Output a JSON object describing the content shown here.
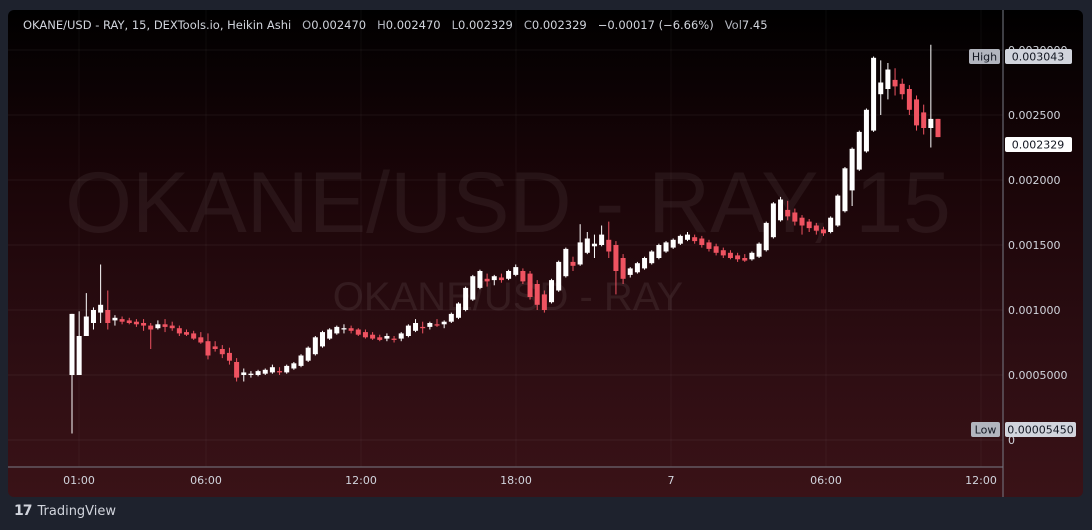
{
  "header": {
    "symbol": "OKANE/USD - RAY, 15, DEXTools.io, Heikin Ashi",
    "o_key": "O",
    "o_val": "0.002470",
    "h_key": "H",
    "h_val": "0.002470",
    "l_key": "L",
    "l_val": "0.002329",
    "c_key": "C",
    "c_val": "0.002329",
    "change": "−0.00017 (−6.66%)",
    "vol_key": "Vol",
    "vol_val": "7.45"
  },
  "watermark": {
    "main": "OKANE/USD - RAY, 15",
    "sub": "OKANE/USD - RAY"
  },
  "footer": {
    "brand": "TradingView"
  },
  "price_labels": {
    "high_tag": "High",
    "high_val": "0.003043",
    "last_val": "0.002329",
    "low_tag": "Low",
    "low_val": "0.00005450"
  },
  "colors": {
    "up": "#ffffff",
    "down": "#ef5361",
    "bg_top": "#000000",
    "bg_bottom": "#3a1217"
  },
  "chart_data": {
    "type": "candlestick",
    "style": "Heikin Ashi",
    "y_ticks": [
      "0.0030000",
      "0.002500",
      "0.002000",
      "0.001500",
      "0.001000",
      "0.0005000",
      "0"
    ],
    "x_ticks": [
      "01:00",
      "06:00",
      "12:00",
      "18:00",
      "7",
      "06:00",
      "12:00"
    ],
    "ylim": [
      0,
      0.00325
    ],
    "candles": [
      {
        "o": 0.0005,
        "h": 0.00097,
        "l": 5e-05,
        "c": 0.00097
      },
      {
        "o": 0.0005,
        "h": 0.00099,
        "l": 0.0005,
        "c": 0.0008
      },
      {
        "o": 0.0008,
        "h": 0.00113,
        "l": 0.0008,
        "c": 0.00095
      },
      {
        "o": 0.0009,
        "h": 0.00102,
        "l": 0.00085,
        "c": 0.001
      },
      {
        "o": 0.00098,
        "h": 0.00135,
        "l": 0.0009,
        "c": 0.00104
      },
      {
        "o": 0.001,
        "h": 0.00115,
        "l": 0.00085,
        "c": 0.0009
      },
      {
        "o": 0.00092,
        "h": 0.00096,
        "l": 0.00088,
        "c": 0.00094
      },
      {
        "o": 0.00093,
        "h": 0.00095,
        "l": 0.00089,
        "c": 0.00091
      },
      {
        "o": 0.00092,
        "h": 0.00094,
        "l": 0.00089,
        "c": 0.0009
      },
      {
        "o": 0.00091,
        "h": 0.00093,
        "l": 0.00087,
        "c": 0.00089
      },
      {
        "o": 0.0009,
        "h": 0.00093,
        "l": 0.00084,
        "c": 0.00088
      },
      {
        "o": 0.00088,
        "h": 0.0009,
        "l": 0.0007,
        "c": 0.00085
      },
      {
        "o": 0.00086,
        "h": 0.00092,
        "l": 0.00085,
        "c": 0.00089
      },
      {
        "o": 0.00089,
        "h": 0.00093,
        "l": 0.00083,
        "c": 0.00087
      },
      {
        "o": 0.00088,
        "h": 0.00091,
        "l": 0.00084,
        "c": 0.00086
      },
      {
        "o": 0.00086,
        "h": 0.00088,
        "l": 0.0008,
        "c": 0.00082
      },
      {
        "o": 0.00083,
        "h": 0.00085,
        "l": 0.0008,
        "c": 0.00081
      },
      {
        "o": 0.00082,
        "h": 0.00084,
        "l": 0.00077,
        "c": 0.00078
      },
      {
        "o": 0.00079,
        "h": 0.00083,
        "l": 0.00074,
        "c": 0.00075
      },
      {
        "o": 0.00076,
        "h": 0.00082,
        "l": 0.00062,
        "c": 0.00065
      },
      {
        "o": 0.00072,
        "h": 0.00076,
        "l": 0.00068,
        "c": 0.0007
      },
      {
        "o": 0.0007,
        "h": 0.00073,
        "l": 0.00063,
        "c": 0.00066
      },
      {
        "o": 0.00067,
        "h": 0.00071,
        "l": 0.00058,
        "c": 0.00061
      },
      {
        "o": 0.0006,
        "h": 0.00063,
        "l": 0.00045,
        "c": 0.00048
      },
      {
        "o": 0.0005,
        "h": 0.00055,
        "l": 0.00045,
        "c": 0.00052
      },
      {
        "o": 0.0005,
        "h": 0.00053,
        "l": 0.00048,
        "c": 0.00051
      },
      {
        "o": 0.0005,
        "h": 0.00054,
        "l": 0.00049,
        "c": 0.00053
      },
      {
        "o": 0.00051,
        "h": 0.00055,
        "l": 0.0005,
        "c": 0.00054
      },
      {
        "o": 0.00052,
        "h": 0.00058,
        "l": 0.00051,
        "c": 0.00056
      },
      {
        "o": 0.00053,
        "h": 0.00056,
        "l": 0.0005,
        "c": 0.00052
      },
      {
        "o": 0.00052,
        "h": 0.00058,
        "l": 0.00051,
        "c": 0.00057
      },
      {
        "o": 0.00055,
        "h": 0.0006,
        "l": 0.00054,
        "c": 0.00059
      },
      {
        "o": 0.00057,
        "h": 0.00066,
        "l": 0.00056,
        "c": 0.00065
      },
      {
        "o": 0.00061,
        "h": 0.00072,
        "l": 0.0006,
        "c": 0.00071
      },
      {
        "o": 0.00066,
        "h": 0.0008,
        "l": 0.00065,
        "c": 0.00079
      },
      {
        "o": 0.00072,
        "h": 0.00084,
        "l": 0.00071,
        "c": 0.00083
      },
      {
        "o": 0.00078,
        "h": 0.00086,
        "l": 0.00077,
        "c": 0.00085
      },
      {
        "o": 0.00082,
        "h": 0.00088,
        "l": 0.00081,
        "c": 0.00087
      },
      {
        "o": 0.00085,
        "h": 0.00089,
        "l": 0.00082,
        "c": 0.00086
      },
      {
        "o": 0.00086,
        "h": 0.00088,
        "l": 0.00082,
        "c": 0.00084
      },
      {
        "o": 0.00085,
        "h": 0.00086,
        "l": 0.0008,
        "c": 0.00081
      },
      {
        "o": 0.00083,
        "h": 0.00085,
        "l": 0.00078,
        "c": 0.00079
      },
      {
        "o": 0.00081,
        "h": 0.00083,
        "l": 0.00077,
        "c": 0.00078
      },
      {
        "o": 0.00079,
        "h": 0.00081,
        "l": 0.00076,
        "c": 0.00077
      },
      {
        "o": 0.00078,
        "h": 0.00082,
        "l": 0.00076,
        "c": 0.0008
      },
      {
        "o": 0.00078,
        "h": 0.0008,
        "l": 0.00075,
        "c": 0.00077
      },
      {
        "o": 0.00078,
        "h": 0.00083,
        "l": 0.00076,
        "c": 0.00082
      },
      {
        "o": 0.0008,
        "h": 0.00089,
        "l": 0.00079,
        "c": 0.00088
      },
      {
        "o": 0.00084,
        "h": 0.00093,
        "l": 0.00083,
        "c": 0.0009
      },
      {
        "o": 0.00087,
        "h": 0.00091,
        "l": 0.00082,
        "c": 0.00086
      },
      {
        "o": 0.00087,
        "h": 0.00091,
        "l": 0.00085,
        "c": 0.0009
      },
      {
        "o": 0.00089,
        "h": 0.00093,
        "l": 0.00087,
        "c": 0.00088
      },
      {
        "o": 0.00089,
        "h": 0.00092,
        "l": 0.00086,
        "c": 0.00091
      },
      {
        "o": 0.00091,
        "h": 0.00098,
        "l": 0.0009,
        "c": 0.00097
      },
      {
        "o": 0.00094,
        "h": 0.00106,
        "l": 0.00093,
        "c": 0.00105
      },
      {
        "o": 0.001,
        "h": 0.00118,
        "l": 0.00099,
        "c": 0.00117
      },
      {
        "o": 0.00108,
        "h": 0.00127,
        "l": 0.00107,
        "c": 0.00126
      },
      {
        "o": 0.00117,
        "h": 0.00131,
        "l": 0.00116,
        "c": 0.0013
      },
      {
        "o": 0.00124,
        "h": 0.00128,
        "l": 0.00118,
        "c": 0.00122
      },
      {
        "o": 0.00123,
        "h": 0.00127,
        "l": 0.00119,
        "c": 0.00126
      },
      {
        "o": 0.00125,
        "h": 0.00128,
        "l": 0.00121,
        "c": 0.00123
      },
      {
        "o": 0.00124,
        "h": 0.00131,
        "l": 0.00123,
        "c": 0.0013
      },
      {
        "o": 0.00127,
        "h": 0.00135,
        "l": 0.00126,
        "c": 0.00133
      },
      {
        "o": 0.0013,
        "h": 0.00132,
        "l": 0.0012,
        "c": 0.00122
      },
      {
        "o": 0.00128,
        "h": 0.0013,
        "l": 0.00108,
        "c": 0.0011
      },
      {
        "o": 0.0012,
        "h": 0.00123,
        "l": 0.001,
        "c": 0.00104
      },
      {
        "o": 0.00112,
        "h": 0.00115,
        "l": 0.00098,
        "c": 0.001
      },
      {
        "o": 0.00106,
        "h": 0.00124,
        "l": 0.00105,
        "c": 0.00123
      },
      {
        "o": 0.00115,
        "h": 0.00138,
        "l": 0.00114,
        "c": 0.00137
      },
      {
        "o": 0.00126,
        "h": 0.00148,
        "l": 0.00125,
        "c": 0.00147
      },
      {
        "o": 0.00137,
        "h": 0.00141,
        "l": 0.0013,
        "c": 0.00134
      },
      {
        "o": 0.00135,
        "h": 0.00166,
        "l": 0.00134,
        "c": 0.00152
      },
      {
        "o": 0.00144,
        "h": 0.0016,
        "l": 0.00143,
        "c": 0.00155
      },
      {
        "o": 0.00149,
        "h": 0.00158,
        "l": 0.0014,
        "c": 0.00151
      },
      {
        "o": 0.0015,
        "h": 0.00165,
        "l": 0.00149,
        "c": 0.00158
      },
      {
        "o": 0.00154,
        "h": 0.00168,
        "l": 0.0014,
        "c": 0.00145
      },
      {
        "o": 0.0015,
        "h": 0.00153,
        "l": 0.00112,
        "c": 0.0013
      },
      {
        "o": 0.0014,
        "h": 0.00143,
        "l": 0.0012,
        "c": 0.00124
      },
      {
        "o": 0.00127,
        "h": 0.00133,
        "l": 0.00125,
        "c": 0.00132
      },
      {
        "o": 0.00129,
        "h": 0.00137,
        "l": 0.00128,
        "c": 0.00136
      },
      {
        "o": 0.00132,
        "h": 0.00141,
        "l": 0.00131,
        "c": 0.0014
      },
      {
        "o": 0.00136,
        "h": 0.00146,
        "l": 0.00135,
        "c": 0.00145
      },
      {
        "o": 0.0014,
        "h": 0.00151,
        "l": 0.00139,
        "c": 0.0015
      },
      {
        "o": 0.00145,
        "h": 0.00153,
        "l": 0.00144,
        "c": 0.00152
      },
      {
        "o": 0.00148,
        "h": 0.00155,
        "l": 0.00147,
        "c": 0.00154
      },
      {
        "o": 0.00151,
        "h": 0.00158,
        "l": 0.0015,
        "c": 0.00157
      },
      {
        "o": 0.00154,
        "h": 0.0016,
        "l": 0.00153,
        "c": 0.00158
      },
      {
        "o": 0.00156,
        "h": 0.00158,
        "l": 0.00151,
        "c": 0.00153
      },
      {
        "o": 0.00155,
        "h": 0.00157,
        "l": 0.00148,
        "c": 0.0015
      },
      {
        "o": 0.00152,
        "h": 0.00154,
        "l": 0.00145,
        "c": 0.00147
      },
      {
        "o": 0.00149,
        "h": 0.00151,
        "l": 0.00142,
        "c": 0.00144
      },
      {
        "o": 0.00146,
        "h": 0.00148,
        "l": 0.0014,
        "c": 0.00142
      },
      {
        "o": 0.00144,
        "h": 0.00146,
        "l": 0.00139,
        "c": 0.0014
      },
      {
        "o": 0.00142,
        "h": 0.00144,
        "l": 0.00137,
        "c": 0.00139
      },
      {
        "o": 0.0014,
        "h": 0.00143,
        "l": 0.00137,
        "c": 0.00138
      },
      {
        "o": 0.00139,
        "h": 0.00145,
        "l": 0.00138,
        "c": 0.00144
      },
      {
        "o": 0.00141,
        "h": 0.00152,
        "l": 0.0014,
        "c": 0.00151
      },
      {
        "o": 0.00146,
        "h": 0.00168,
        "l": 0.00145,
        "c": 0.00167
      },
      {
        "o": 0.00156,
        "h": 0.00183,
        "l": 0.00155,
        "c": 0.00182
      },
      {
        "o": 0.00169,
        "h": 0.00187,
        "l": 0.00168,
        "c": 0.00185
      },
      {
        "o": 0.00177,
        "h": 0.00184,
        "l": 0.00169,
        "c": 0.00172
      },
      {
        "o": 0.00175,
        "h": 0.00178,
        "l": 0.00165,
        "c": 0.00168
      },
      {
        "o": 0.00171,
        "h": 0.00173,
        "l": 0.00158,
        "c": 0.00165
      },
      {
        "o": 0.00168,
        "h": 0.0017,
        "l": 0.0016,
        "c": 0.00163
      },
      {
        "o": 0.00165,
        "h": 0.00167,
        "l": 0.00158,
        "c": 0.00161
      },
      {
        "o": 0.00162,
        "h": 0.00164,
        "l": 0.00157,
        "c": 0.00159
      },
      {
        "o": 0.0016,
        "h": 0.00172,
        "l": 0.00159,
        "c": 0.00171
      },
      {
        "o": 0.00165,
        "h": 0.00189,
        "l": 0.00164,
        "c": 0.00188
      },
      {
        "o": 0.00176,
        "h": 0.0021,
        "l": 0.00175,
        "c": 0.00209
      },
      {
        "o": 0.00192,
        "h": 0.00225,
        "l": 0.0018,
        "c": 0.00224
      },
      {
        "o": 0.00208,
        "h": 0.00238,
        "l": 0.00207,
        "c": 0.00237
      },
      {
        "o": 0.00222,
        "h": 0.00255,
        "l": 0.00221,
        "c": 0.00254
      },
      {
        "o": 0.00238,
        "h": 0.00295,
        "l": 0.00237,
        "c": 0.00294
      },
      {
        "o": 0.00266,
        "h": 0.00292,
        "l": 0.0025,
        "c": 0.00275
      },
      {
        "o": 0.0027,
        "h": 0.0029,
        "l": 0.00262,
        "c": 0.00285
      },
      {
        "o": 0.00277,
        "h": 0.00286,
        "l": 0.00265,
        "c": 0.00272
      },
      {
        "o": 0.00274,
        "h": 0.00278,
        "l": 0.00262,
        "c": 0.00266
      },
      {
        "o": 0.0027,
        "h": 0.00273,
        "l": 0.0025,
        "c": 0.00254
      },
      {
        "o": 0.00262,
        "h": 0.00265,
        "l": 0.00238,
        "c": 0.00242
      },
      {
        "o": 0.00252,
        "h": 0.00258,
        "l": 0.00235,
        "c": 0.0024
      },
      {
        "o": 0.0024,
        "h": 0.00304,
        "l": 0.00225,
        "c": 0.00247
      },
      {
        "o": 0.00247,
        "h": 0.00247,
        "l": 0.00233,
        "c": 0.00233
      }
    ]
  }
}
